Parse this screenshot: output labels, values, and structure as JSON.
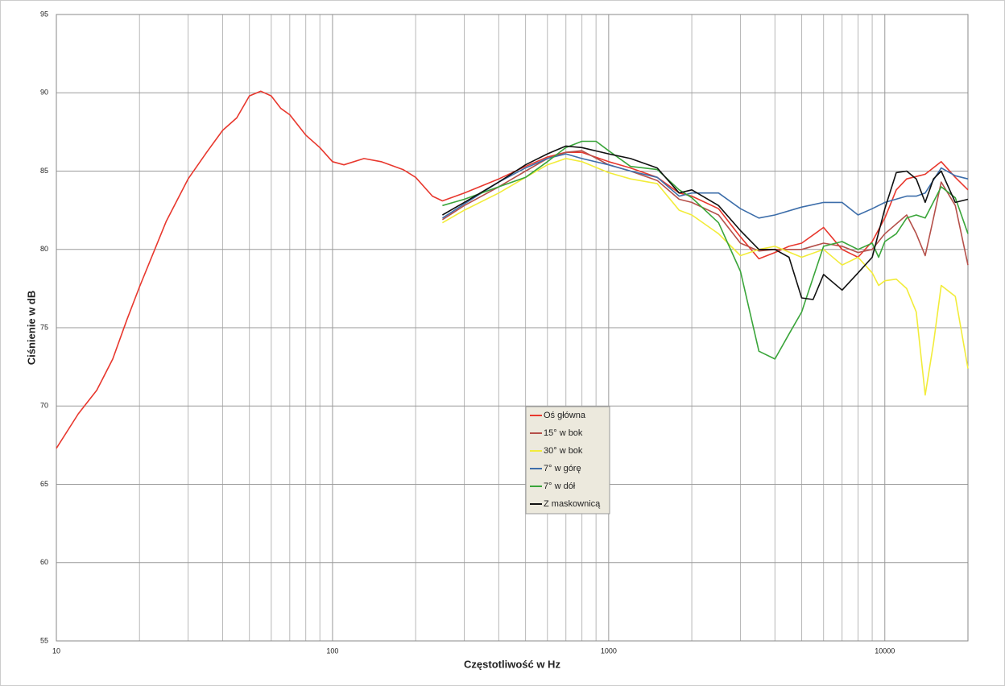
{
  "chart_data": {
    "type": "line",
    "x_label": "Częstotliwość w Hz",
    "y_label": "Ciśnienie w dB",
    "xscale": "log",
    "xlim": [
      10,
      20000
    ],
    "ylim": [
      55,
      95
    ],
    "xticks": [
      10,
      100,
      1000,
      10000
    ],
    "yticks": [
      55,
      60,
      65,
      70,
      75,
      80,
      85,
      90,
      95
    ],
    "grid": true,
    "legend": "center",
    "series": [
      {
        "name": "Oś główna",
        "color": "#e8382e",
        "x": [
          10,
          12,
          14,
          16,
          18,
          20,
          25,
          30,
          35,
          40,
          45,
          50,
          55,
          60,
          65,
          70,
          80,
          90,
          100,
          110,
          130,
          150,
          180,
          200,
          230,
          250,
          300,
          400,
          500,
          600,
          700,
          800,
          1000,
          1200,
          1500,
          1800,
          2000,
          2500,
          3000,
          3500,
          4000,
          4500,
          5000,
          6000,
          7000,
          8000,
          9000,
          10000,
          11000,
          12000,
          14000,
          16000,
          18000,
          20000
        ],
        "values": [
          67.3,
          69.5,
          71,
          73,
          75.5,
          77.6,
          81.8,
          84.5,
          86.2,
          87.6,
          88.4,
          89.8,
          90.1,
          89.8,
          89,
          88.6,
          87.3,
          86.5,
          85.6,
          85.4,
          85.8,
          85.6,
          85.1,
          84.6,
          83.4,
          83.1,
          83.6,
          84.5,
          85.3,
          85.9,
          86.2,
          86.2,
          85.6,
          85.2,
          84.6,
          83.6,
          83.4,
          82.6,
          80.8,
          79.4,
          79.8,
          80.2,
          80.4,
          81.4,
          80,
          79.5,
          80.5,
          82,
          83.8,
          84.5,
          84.8,
          85.6,
          84.6,
          83.8
        ]
      },
      {
        "name": "15° w bok",
        "color": "#b5504a",
        "x": [
          250,
          300,
          400,
          500,
          600,
          700,
          800,
          1000,
          1200,
          1500,
          1800,
          2000,
          2500,
          3000,
          3500,
          4000,
          5000,
          6000,
          7000,
          8000,
          9000,
          10000,
          12000,
          13000,
          14000,
          15000,
          16000,
          18000,
          20000
        ],
        "values": [
          81.9,
          82.8,
          84,
          85,
          85.8,
          86.2,
          86.3,
          85.4,
          85,
          84.4,
          83.2,
          83,
          82.2,
          80.4,
          79.9,
          80,
          80,
          80.4,
          80.2,
          79.8,
          80,
          81,
          82.2,
          81,
          79.6,
          82,
          84.3,
          82.8,
          79
        ]
      },
      {
        "name": "30° w bok",
        "color": "#f2ec3a",
        "x": [
          250,
          300,
          400,
          500,
          600,
          700,
          800,
          1000,
          1200,
          1500,
          1800,
          2000,
          2500,
          3000,
          3500,
          4000,
          5000,
          6000,
          7000,
          8000,
          9000,
          9500,
          10000,
          11000,
          12000,
          13000,
          14000,
          15000,
          16000,
          18000,
          20000
        ],
        "values": [
          81.7,
          82.5,
          83.6,
          84.6,
          85.4,
          85.8,
          85.6,
          84.9,
          84.5,
          84.2,
          82.5,
          82.2,
          81,
          79.6,
          80,
          80.2,
          79.5,
          80,
          79,
          79.5,
          78.5,
          77.7,
          78,
          78.1,
          77.5,
          76,
          70.7,
          74,
          77.7,
          77,
          72.4
        ]
      },
      {
        "name": "7° w górę",
        "color": "#3d6eaa",
        "x": [
          250,
          300,
          400,
          500,
          600,
          700,
          800,
          1000,
          1200,
          1500,
          1800,
          2000,
          2500,
          3000,
          3500,
          4000,
          5000,
          6000,
          7000,
          8000,
          9000,
          10000,
          12000,
          13000,
          14000,
          16000,
          18000,
          20000
        ],
        "values": [
          82,
          82.9,
          84.3,
          85.2,
          85.8,
          86.1,
          85.8,
          85.4,
          85,
          84.6,
          83.4,
          83.6,
          83.6,
          82.6,
          82,
          82.2,
          82.7,
          83,
          83,
          82.2,
          82.6,
          83,
          83.4,
          83.4,
          83.6,
          85.2,
          84.7,
          84.5
        ]
      },
      {
        "name": "7° w dół",
        "color": "#3aa53a",
        "x": [
          250,
          300,
          400,
          500,
          600,
          700,
          800,
          900,
          1000,
          1200,
          1500,
          1800,
          2000,
          2500,
          3000,
          3500,
          4000,
          4500,
          5000,
          6000,
          7000,
          8000,
          9000,
          9500,
          10000,
          11000,
          12000,
          13000,
          14000,
          16000,
          18000,
          20000
        ],
        "values": [
          82.8,
          83.2,
          84,
          84.6,
          85.6,
          86.5,
          86.9,
          86.9,
          86.3,
          85.3,
          85.1,
          83.8,
          83.3,
          81.7,
          78.6,
          73.5,
          73,
          74.6,
          76,
          80.2,
          80.5,
          80,
          80.4,
          79.5,
          80.5,
          81,
          82,
          82.2,
          82,
          84,
          83.3,
          81
        ]
      },
      {
        "name": "Z maskownicą",
        "color": "#111111",
        "x": [
          250,
          300,
          400,
          500,
          600,
          700,
          800,
          1000,
          1200,
          1500,
          1800,
          2000,
          2500,
          3000,
          3500,
          4000,
          4500,
          5000,
          5500,
          6000,
          7000,
          8000,
          9000,
          10000,
          11000,
          12000,
          13000,
          14000,
          15000,
          16000,
          18000,
          20000
        ],
        "values": [
          82.2,
          83,
          84.3,
          85.4,
          86.1,
          86.6,
          86.5,
          86.1,
          85.8,
          85.2,
          83.6,
          83.8,
          82.8,
          81.2,
          80,
          80,
          79.5,
          76.9,
          76.8,
          78.4,
          77.4,
          78.5,
          79.5,
          82.6,
          84.9,
          85,
          84.5,
          83,
          84.5,
          85,
          83,
          83.2
        ]
      }
    ]
  }
}
